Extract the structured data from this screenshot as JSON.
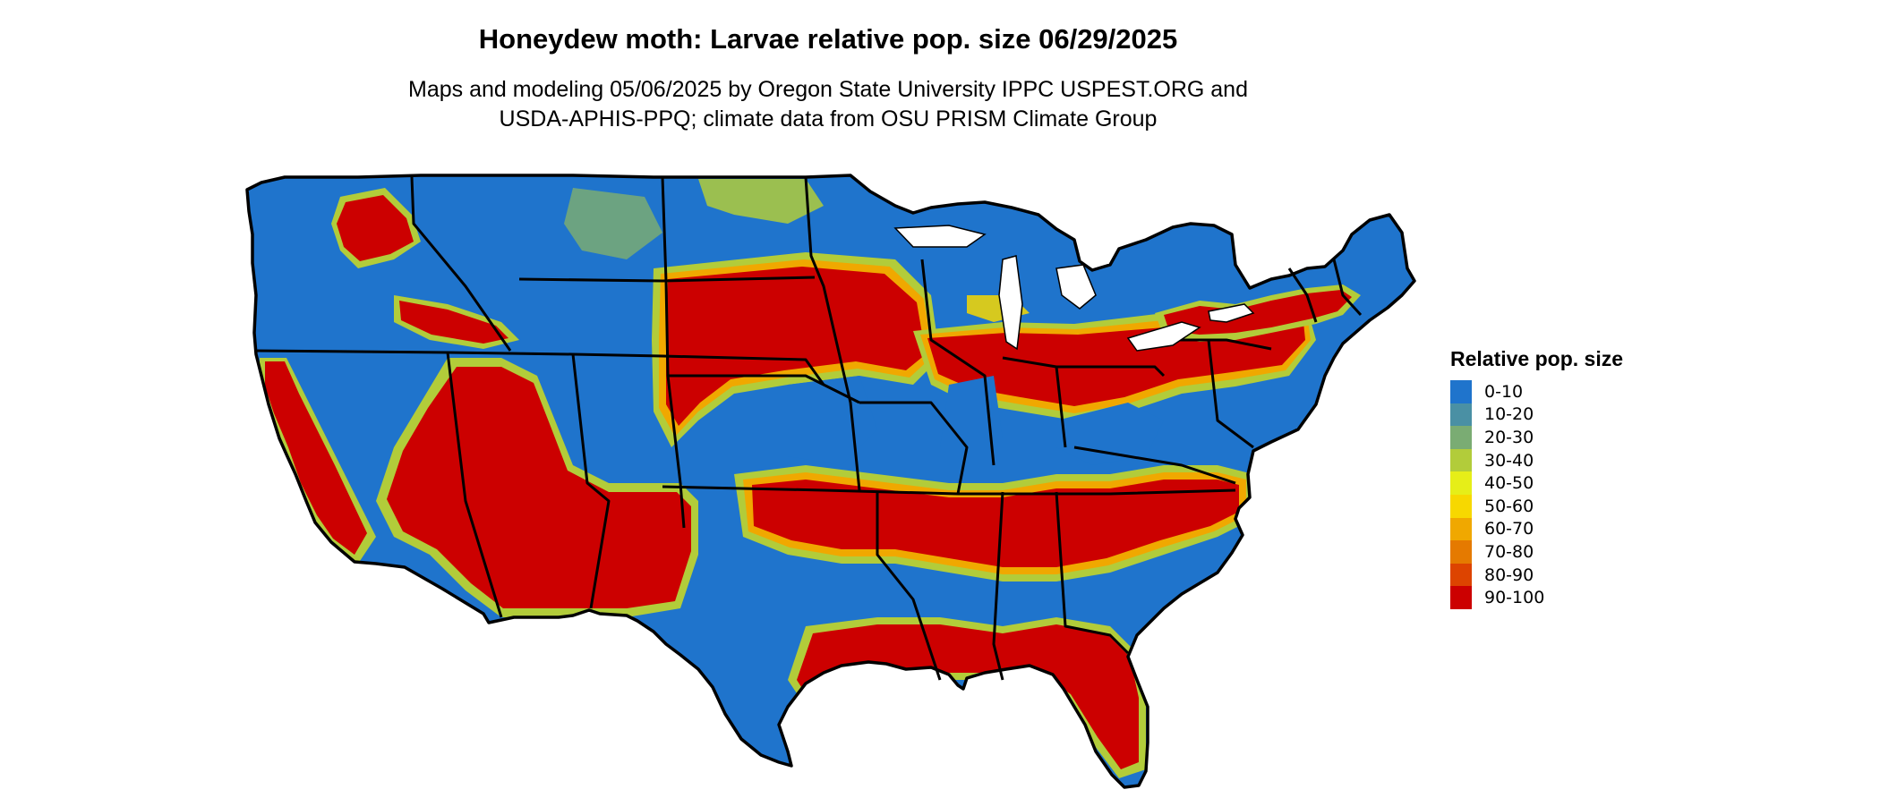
{
  "title": "Honeydew moth: Larvae relative pop. size 06/29/2025",
  "subtitle": {
    "line1": "Maps and modeling 05/06/2025 by Oregon State University IPPC USPEST.ORG and",
    "line2": "USDA-APHIS-PPQ; climate data from OSU PRISM Climate Group"
  },
  "legend": {
    "title": "Relative pop. size",
    "items": [
      {
        "label": "0-10",
        "color": "#1f74cc"
      },
      {
        "label": "10-20",
        "color": "#4a90a4"
      },
      {
        "label": "20-30",
        "color": "#7aac73"
      },
      {
        "label": "30-40",
        "color": "#b2cc3a"
      },
      {
        "label": "40-50",
        "color": "#e6ee18"
      },
      {
        "label": "50-60",
        "color": "#f7d800"
      },
      {
        "label": "60-70",
        "color": "#f0a800"
      },
      {
        "label": "70-80",
        "color": "#e57a00"
      },
      {
        "label": "80-90",
        "color": "#dd4400"
      },
      {
        "label": "90-100",
        "color": "#cc0000"
      }
    ]
  },
  "colors": {
    "low": "#1f74cc",
    "high": "#cc0000",
    "transition_mid": "#b2cc3a",
    "transition_warm": "#f0a800",
    "border": "#000000"
  }
}
